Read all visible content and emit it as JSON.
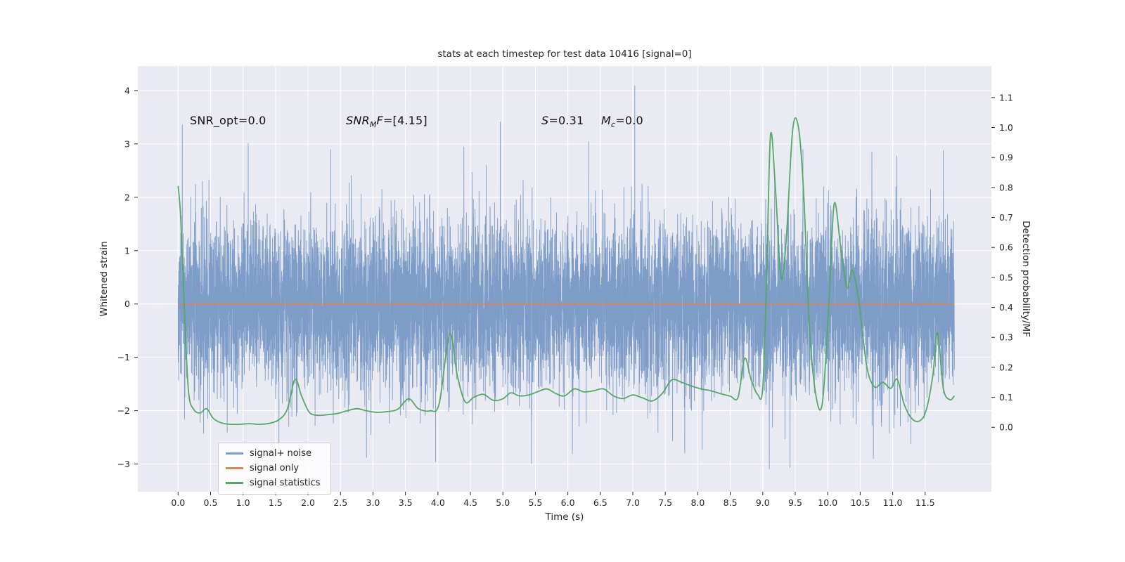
{
  "figure": {
    "background": "#ffffff",
    "plot_background": "#eaeaf2",
    "grid_color": "#ffffff",
    "text_color": "#262626"
  },
  "chart_data": {
    "type": "line",
    "title": "stats at each timestep for test data 10416 [signal=0]",
    "xlabel": "Time (s)",
    "ylabel_left": "Whitened strain",
    "ylabel_right": "Detection probability/MF",
    "xlim": [
      -0.62,
      12.52
    ],
    "ylim_left": [
      -3.52,
      4.46
    ],
    "ylim_right": [
      -0.215,
      1.205
    ],
    "grid": true,
    "legend_position": "lower left",
    "xticks": [
      0.0,
      0.5,
      1.0,
      1.5,
      2.0,
      2.5,
      3.0,
      3.5,
      4.0,
      4.5,
      5.0,
      5.5,
      6.0,
      6.5,
      7.0,
      7.5,
      8.0,
      8.5,
      9.0,
      9.5,
      10.0,
      10.5,
      11.0,
      11.5
    ],
    "yticks_left": [
      -3,
      -2,
      -1,
      0,
      1,
      2,
      3,
      4
    ],
    "yticks_right": [
      0.0,
      0.1,
      0.2,
      0.3,
      0.4,
      0.5,
      0.6,
      0.7,
      0.8,
      0.9,
      1.0,
      1.1
    ],
    "series": [
      {
        "name": "signal+ noise",
        "color": "#7d9cc8",
        "axis": "left",
        "kind": "gaussian-noise",
        "duration": 11.95,
        "samples": 9000,
        "sigma": 0.78,
        "seed": 10416,
        "typical_band": [
          -1.6,
          1.6
        ],
        "notable_peaks": [
          {
            "t": 7.03,
            "v": 4.09
          },
          {
            "t": 4.96,
            "v": 3.42
          },
          {
            "t": 1.08,
            "v": 3.02
          },
          {
            "t": 6.32,
            "v": 3.05
          },
          {
            "t": 4.4,
            "v": 2.95
          },
          {
            "t": 2.35,
            "v": 2.9
          },
          {
            "t": 9.62,
            "v": 2.9
          },
          {
            "t": 11.78,
            "v": 2.88
          },
          {
            "t": 10.68,
            "v": 2.85
          },
          {
            "t": 5.44,
            "v": -3.0
          },
          {
            "t": 9.1,
            "v": -3.1
          },
          {
            "t": 2.9,
            "v": -2.88
          },
          {
            "t": 7.8,
            "v": -2.8
          },
          {
            "t": 11.28,
            "v": -2.62
          }
        ]
      },
      {
        "name": "signal only",
        "color": "#dd8452",
        "axis": "left",
        "kind": "constant",
        "value": 0.0,
        "t_range": [
          0.0,
          11.95
        ]
      },
      {
        "name": "signal statistics",
        "color": "#55a868",
        "axis": "right",
        "kind": "keypoints",
        "points": [
          [
            0.0,
            0.805
          ],
          [
            0.04,
            0.7
          ],
          [
            0.1,
            0.38
          ],
          [
            0.16,
            0.12
          ],
          [
            0.24,
            0.06
          ],
          [
            0.34,
            0.048
          ],
          [
            0.44,
            0.062
          ],
          [
            0.54,
            0.03
          ],
          [
            0.66,
            0.015
          ],
          [
            0.8,
            0.01
          ],
          [
            0.95,
            0.01
          ],
          [
            1.1,
            0.012
          ],
          [
            1.25,
            0.01
          ],
          [
            1.4,
            0.013
          ],
          [
            1.55,
            0.025
          ],
          [
            1.68,
            0.06
          ],
          [
            1.8,
            0.16
          ],
          [
            1.9,
            0.105
          ],
          [
            2.02,
            0.05
          ],
          [
            2.15,
            0.04
          ],
          [
            2.3,
            0.042
          ],
          [
            2.45,
            0.046
          ],
          [
            2.6,
            0.055
          ],
          [
            2.75,
            0.062
          ],
          [
            2.9,
            0.055
          ],
          [
            3.05,
            0.05
          ],
          [
            3.2,
            0.052
          ],
          [
            3.38,
            0.06
          ],
          [
            3.55,
            0.095
          ],
          [
            3.7,
            0.062
          ],
          [
            3.88,
            0.055
          ],
          [
            4.02,
            0.08
          ],
          [
            4.18,
            0.31
          ],
          [
            4.3,
            0.17
          ],
          [
            4.42,
            0.085
          ],
          [
            4.55,
            0.1
          ],
          [
            4.7,
            0.11
          ],
          [
            4.85,
            0.09
          ],
          [
            5.0,
            0.095
          ],
          [
            5.12,
            0.115
          ],
          [
            5.25,
            0.105
          ],
          [
            5.4,
            0.108
          ],
          [
            5.55,
            0.12
          ],
          [
            5.68,
            0.128
          ],
          [
            5.82,
            0.112
          ],
          [
            5.95,
            0.105
          ],
          [
            6.1,
            0.128
          ],
          [
            6.25,
            0.118
          ],
          [
            6.4,
            0.122
          ],
          [
            6.55,
            0.128
          ],
          [
            6.7,
            0.105
          ],
          [
            6.85,
            0.096
          ],
          [
            7.0,
            0.108
          ],
          [
            7.15,
            0.098
          ],
          [
            7.3,
            0.088
          ],
          [
            7.45,
            0.112
          ],
          [
            7.6,
            0.158
          ],
          [
            7.75,
            0.15
          ],
          [
            7.9,
            0.138
          ],
          [
            8.05,
            0.128
          ],
          [
            8.2,
            0.122
          ],
          [
            8.35,
            0.112
          ],
          [
            8.5,
            0.104
          ],
          [
            8.62,
            0.1
          ],
          [
            8.72,
            0.23
          ],
          [
            8.82,
            0.16
          ],
          [
            8.92,
            0.11
          ],
          [
            9.0,
            0.13
          ],
          [
            9.06,
            0.5
          ],
          [
            9.12,
            0.975
          ],
          [
            9.2,
            0.78
          ],
          [
            9.28,
            0.5
          ],
          [
            9.36,
            0.62
          ],
          [
            9.46,
            0.99
          ],
          [
            9.55,
            1.0
          ],
          [
            9.63,
            0.78
          ],
          [
            9.72,
            0.33
          ],
          [
            9.82,
            0.105
          ],
          [
            9.92,
            0.085
          ],
          [
            10.02,
            0.42
          ],
          [
            10.1,
            0.745
          ],
          [
            10.2,
            0.6
          ],
          [
            10.3,
            0.465
          ],
          [
            10.38,
            0.525
          ],
          [
            10.48,
            0.42
          ],
          [
            10.6,
            0.205
          ],
          [
            10.72,
            0.135
          ],
          [
            10.85,
            0.15
          ],
          [
            10.97,
            0.13
          ],
          [
            11.07,
            0.16
          ],
          [
            11.18,
            0.075
          ],
          [
            11.3,
            0.028
          ],
          [
            11.42,
            0.022
          ],
          [
            11.52,
            0.06
          ],
          [
            11.62,
            0.175
          ],
          [
            11.69,
            0.315
          ],
          [
            11.78,
            0.13
          ],
          [
            11.88,
            0.092
          ],
          [
            11.95,
            0.105
          ]
        ]
      }
    ],
    "annotations": [
      {
        "x": 0.18,
        "y": 3.42,
        "parts": [
          {
            "t": "SNR_opt=0.0",
            "i": false,
            "sub": false
          }
        ]
      },
      {
        "x": 2.58,
        "y": 3.42,
        "parts": [
          {
            "t": "SNR",
            "i": true,
            "sub": false
          },
          {
            "t": "M",
            "i": true,
            "sub": true
          },
          {
            "t": "F",
            "i": true,
            "sub": false
          },
          {
            "t": "=[4.15]",
            "i": false,
            "sub": false
          }
        ]
      },
      {
        "x": 5.59,
        "y": 3.42,
        "parts": [
          {
            "t": "S",
            "i": true,
            "sub": false
          },
          {
            "t": "=0.31",
            "i": false,
            "sub": false
          }
        ]
      },
      {
        "x": 6.51,
        "y": 3.42,
        "parts": [
          {
            "t": "M",
            "i": true,
            "sub": false
          },
          {
            "t": "c",
            "i": true,
            "sub": true
          },
          {
            "t": "=0.0",
            "i": false,
            "sub": false
          }
        ]
      }
    ]
  }
}
